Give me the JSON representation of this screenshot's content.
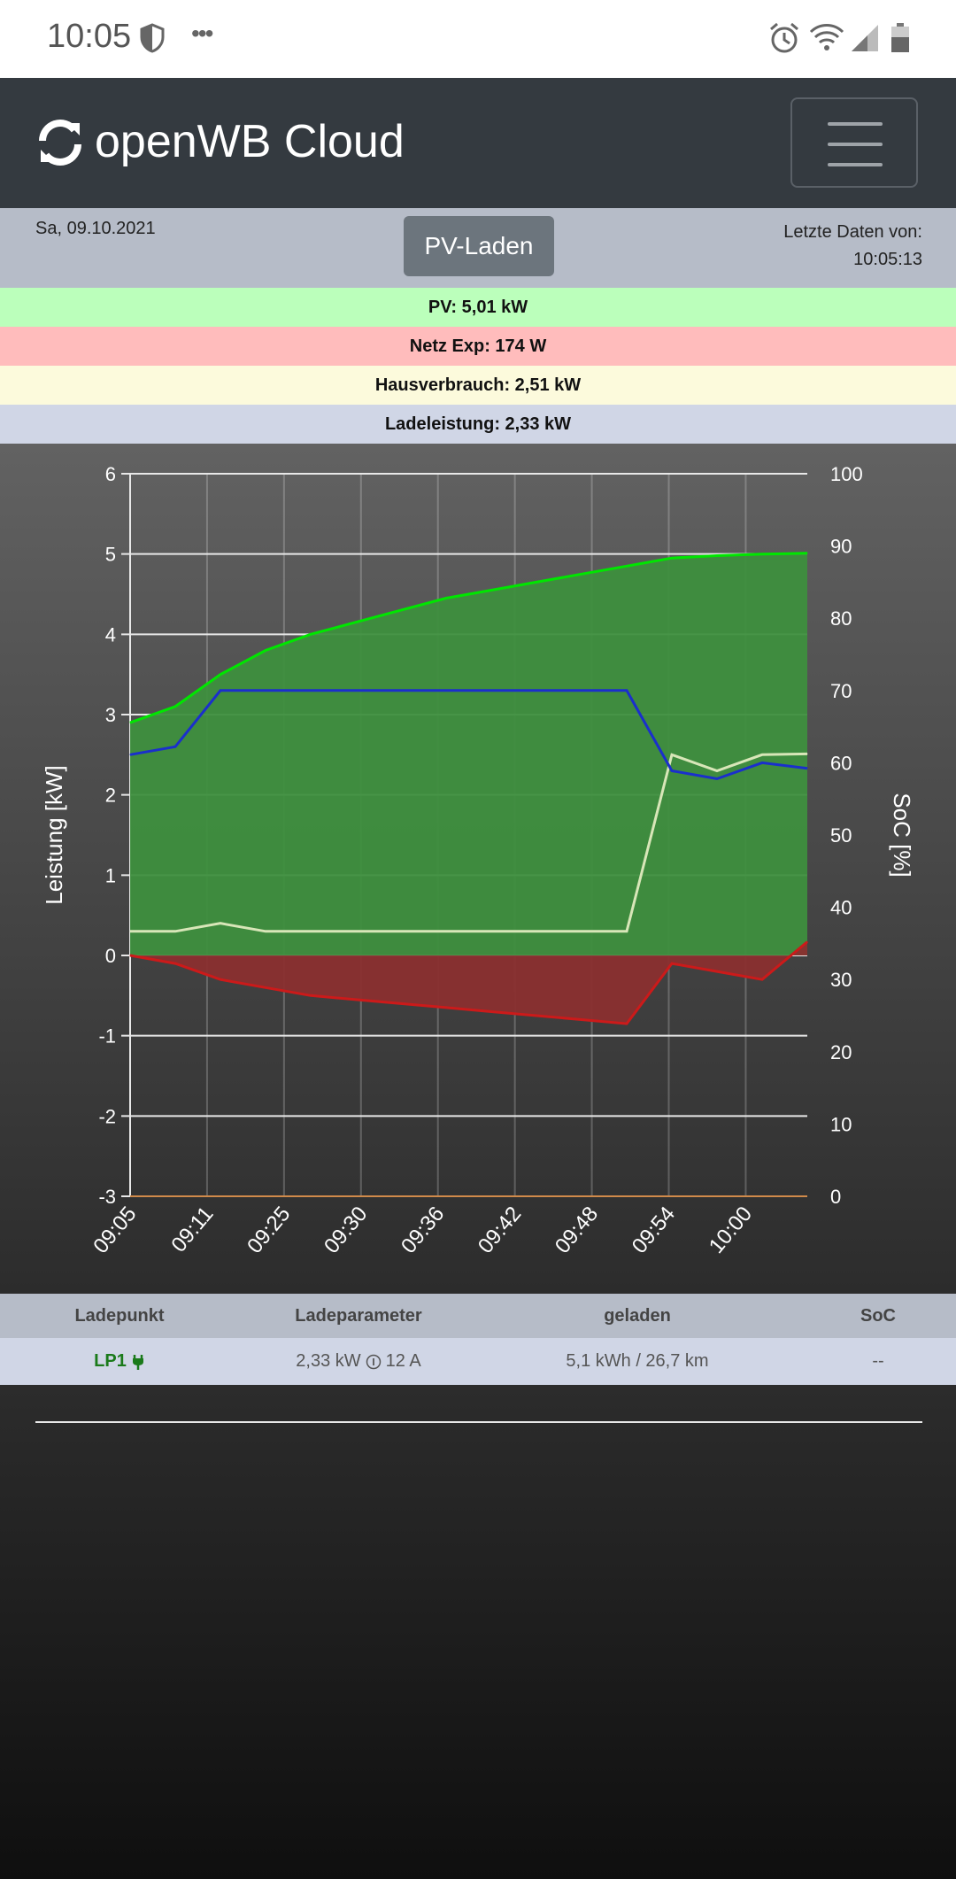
{
  "status_bar": {
    "time": "10:05",
    "icons": [
      "shield-icon",
      "more-dots-icon",
      "alarm-icon",
      "wifi-icon",
      "signal-icon",
      "battery-icon"
    ]
  },
  "navbar": {
    "brand": "openWB Cloud",
    "brand_icon": "sync-icon",
    "menu_icon": "hamburger-icon"
  },
  "info": {
    "date": "Sa, 09.10.2021",
    "mode_button": "PV-Laden",
    "last_data_label": "Letzte Daten von:",
    "last_data_time": "10:05:13"
  },
  "summary": {
    "pv": "PV: 5,01 kW",
    "grid": "Netz Exp: 174 W",
    "house": "Hausverbrauch: 2,51 kW",
    "charging": "Ladeleistung: 2,33 kW"
  },
  "colors": {
    "pv": "#00e600",
    "pv_fill": "#3e8f3e",
    "grid": "#cc1a1a",
    "grid_fill": "#8a2f2f",
    "house": "#d8e6b8",
    "charging": "#1a2fcc"
  },
  "chart_data": {
    "type": "line",
    "title": "",
    "xlabel": "",
    "ylabel": "Leistung [kW]",
    "y2label": "SoC [%]",
    "ylim": [
      -3,
      6
    ],
    "y2lim": [
      0,
      100
    ],
    "y_ticks": [
      "6",
      "5",
      "4",
      "3",
      "2",
      "1",
      "0",
      "-1",
      "-2",
      "-3"
    ],
    "y2_ticks": [
      "100",
      "90",
      "80",
      "70",
      "60",
      "50",
      "40",
      "30",
      "20",
      "10",
      "0"
    ],
    "x_ticks": [
      "09:05",
      "09:11",
      "09:25",
      "09:30",
      "09:36",
      "09:42",
      "09:48",
      "09:54",
      "10:00"
    ],
    "x": [
      0,
      4,
      8,
      12,
      16,
      20,
      24,
      28,
      32,
      36,
      40,
      44,
      48,
      52,
      56,
      60
    ],
    "series": [
      {
        "name": "PV",
        "values": [
          2.9,
          3.1,
          3.5,
          3.8,
          4.0,
          4.15,
          4.3,
          4.45,
          4.55,
          4.65,
          4.75,
          4.85,
          4.95,
          4.98,
          5.0,
          5.01
        ]
      },
      {
        "name": "Ladeleistung",
        "values": [
          2.5,
          2.6,
          3.3,
          3.3,
          3.3,
          3.3,
          3.3,
          3.3,
          3.3,
          3.3,
          3.3,
          3.3,
          2.3,
          2.2,
          2.4,
          2.33
        ]
      },
      {
        "name": "Hausverbrauch",
        "values": [
          0.3,
          0.3,
          0.4,
          0.3,
          0.3,
          0.3,
          0.3,
          0.3,
          0.3,
          0.3,
          0.3,
          0.3,
          2.5,
          2.3,
          2.5,
          2.51
        ]
      },
      {
        "name": "Netz",
        "values": [
          0.0,
          -0.1,
          -0.3,
          -0.4,
          -0.5,
          -0.55,
          -0.6,
          -0.65,
          -0.7,
          -0.75,
          -0.8,
          -0.85,
          -0.1,
          -0.2,
          -0.3,
          0.17
        ]
      }
    ]
  },
  "table": {
    "headers": [
      "Ladepunkt",
      "Ladeparameter",
      "geladen",
      "SoC"
    ],
    "row": {
      "name": "LP1",
      "plug_icon": "plug-icon",
      "power": "2,33 kW",
      "current_icon": "info-circle-icon",
      "current": "12 A",
      "charged": "5,1 kWh / 26,7 km",
      "soc": "--"
    }
  }
}
